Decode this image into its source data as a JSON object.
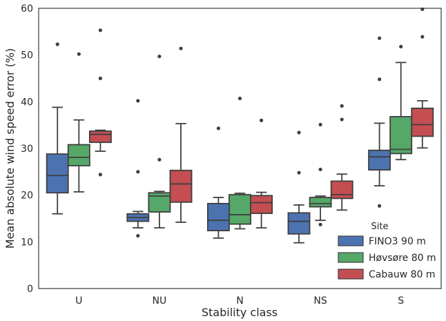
{
  "chart_data": {
    "type": "boxplot",
    "xlabel": "Stability class",
    "ylabel": "Mean absolute wind speed error (%)",
    "ylim": [
      0,
      60
    ],
    "yticks": [
      0,
      10,
      20,
      30,
      40,
      50,
      60
    ],
    "categories": [
      "U",
      "NU",
      "N",
      "NS",
      "S"
    ],
    "grid": false,
    "legend": {
      "title": "Site",
      "placement": "bottom-right"
    },
    "series": [
      {
        "name": "FINO3 90 m",
        "color": "#4c72b0",
        "boxes": [
          {
            "whisker_low": 16,
            "q1": 20.5,
            "median": 24.2,
            "q3": 28.8,
            "whisker_high": 38.8,
            "outliers": [
              52.3
            ]
          },
          {
            "whisker_low": 13,
            "q1": 14.4,
            "median": 15.2,
            "q3": 16.0,
            "whisker_high": 16.5,
            "outliers": [
              40.2,
              25,
              11.3
            ]
          },
          {
            "whisker_low": 10.8,
            "q1": 12.4,
            "median": 14.6,
            "q3": 18.2,
            "whisker_high": 19.5,
            "outliers": [
              34.3
            ]
          },
          {
            "whisker_low": 9.8,
            "q1": 11.7,
            "median": 14.4,
            "q3": 16.2,
            "whisker_high": 17.9,
            "outliers": [
              33.4,
              24.8
            ]
          },
          {
            "whisker_low": 22,
            "q1": 25.4,
            "median": 28.2,
            "q3": 29.6,
            "whisker_high": 35.4,
            "outliers": [
              53.6,
              44.8,
              17.7
            ]
          }
        ]
      },
      {
        "name": "Høvsøre 80 m",
        "color": "#55a868",
        "boxes": [
          {
            "whisker_low": 20.7,
            "q1": 26.3,
            "median": 28.1,
            "q3": 30.8,
            "whisker_high": 36.1,
            "outliers": [
              50.2
            ]
          },
          {
            "whisker_low": 13,
            "q1": 16.4,
            "median": 19.8,
            "q3": 20.5,
            "whisker_high": 20.8,
            "outliers": [
              49.7,
              27.6
            ]
          },
          {
            "whisker_low": 12.8,
            "q1": 13.8,
            "median": 15.8,
            "q3": 20.1,
            "whisker_high": 20.4,
            "outliers": [
              40.7
            ]
          },
          {
            "whisker_low": 14.6,
            "q1": 17.5,
            "median": 18.2,
            "q3": 19.5,
            "whisker_high": 19.8,
            "outliers": [
              35.1,
              25.5,
              13.7
            ]
          },
          {
            "whisker_low": 27.6,
            "q1": 28.9,
            "median": 29.8,
            "q3": 36.8,
            "whisker_high": 48.4,
            "outliers": [
              51.8
            ]
          }
        ]
      },
      {
        "name": "Cabauw 80 m",
        "color": "#c44e52",
        "boxes": [
          {
            "whisker_low": 29.4,
            "q1": 31.3,
            "median": 33.0,
            "q3": 33.7,
            "whisker_high": 33.9,
            "outliers": [
              55.3,
              45,
              24.4
            ]
          },
          {
            "whisker_low": 14.2,
            "q1": 18.5,
            "median": 22.4,
            "q3": 25.3,
            "whisker_high": 35.3,
            "outliers": [
              51.4
            ]
          },
          {
            "whisker_low": 13,
            "q1": 16.1,
            "median": 18.4,
            "q3": 19.9,
            "whisker_high": 20.6,
            "outliers": [
              36
            ]
          },
          {
            "whisker_low": 16.8,
            "q1": 19.3,
            "median": 20.1,
            "q3": 23,
            "whisker_high": 24.5,
            "outliers": [
              39.1,
              36.2
            ]
          },
          {
            "whisker_low": 30.1,
            "q1": 32.6,
            "median": 35.1,
            "q3": 38.6,
            "whisker_high": 40.2,
            "outliers": [
              59.8,
              53.9
            ]
          }
        ]
      }
    ]
  }
}
